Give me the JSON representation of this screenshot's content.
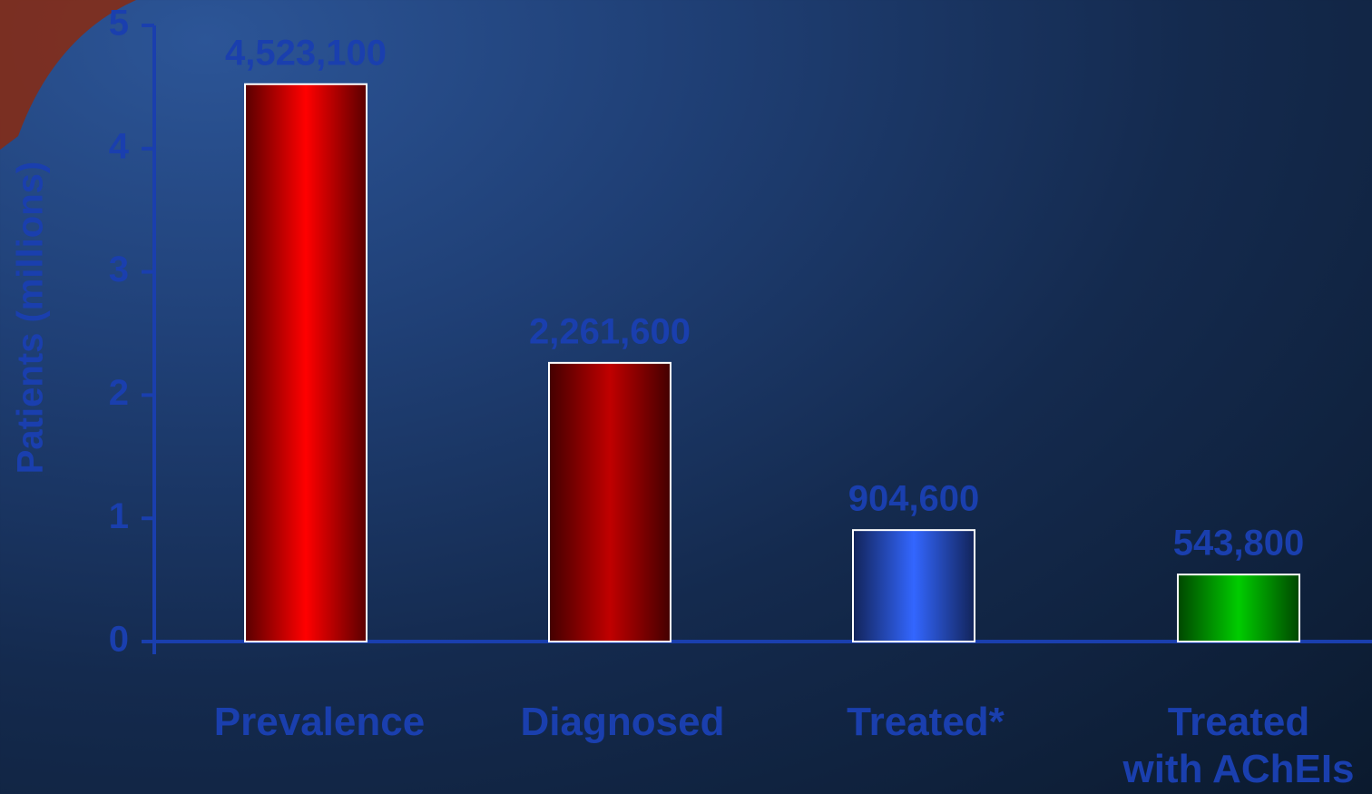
{
  "chart_data": {
    "type": "bar",
    "y_label": "Patients (millions)",
    "categories": [
      "Prevalence",
      "Diagnosed",
      "Treated*",
      "Treated\nwith AChEIs"
    ],
    "values": [
      4.5231,
      2.2616,
      0.9046,
      0.5438
    ],
    "value_labels": [
      "4,523,100",
      "2,261,600",
      "904,600",
      "543,800"
    ],
    "colors": [
      "#ff0000",
      "#c00000",
      "#3366ff",
      "#00cc00"
    ],
    "ylim": [
      0,
      5
    ],
    "yticks": [
      0,
      1,
      2,
      3,
      4,
      5
    ]
  }
}
